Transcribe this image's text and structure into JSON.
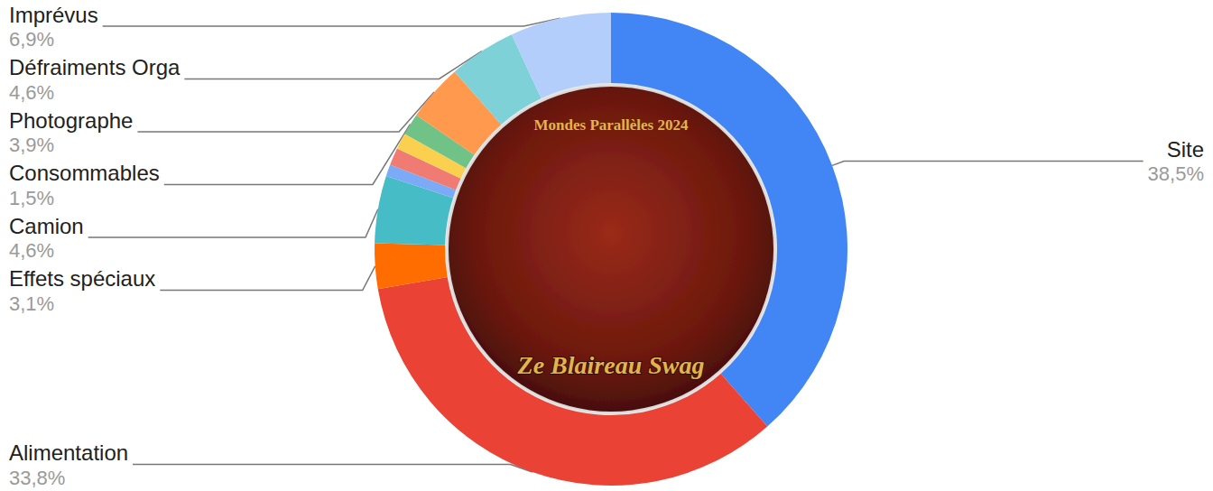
{
  "chart_data": {
    "type": "pie",
    "categories": [
      "Site",
      "Alimentation",
      "Effets spéciaux",
      "Camion",
      null,
      null,
      null,
      "Consommables",
      "Photographe",
      "Défraiments Orga",
      "Imprévus"
    ],
    "values": [
      38.5,
      33.8,
      3.1,
      4.6,
      0.8,
      1.2,
      1.1,
      1.5,
      3.9,
      4.6,
      6.9
    ],
    "value_labels": [
      "38,5%",
      "33,8%",
      "3,1%",
      "4,6%",
      null,
      null,
      null,
      "1,5%",
      "3,9%",
      "4,6%",
      "6,9%"
    ],
    "colors": [
      "#4285f4",
      "#ea4335",
      "#ff6d01",
      "#46bdc6",
      "#7baaf7",
      "#f07b72",
      "#fcd04f",
      "#71c287",
      "#ff994d",
      "#7ed1d7",
      "#b3cefb"
    ],
    "annotations": [
      "Mondes Parallèles 2024",
      "Ze Blaireau Swag"
    ],
    "data_labels": true
  }
}
